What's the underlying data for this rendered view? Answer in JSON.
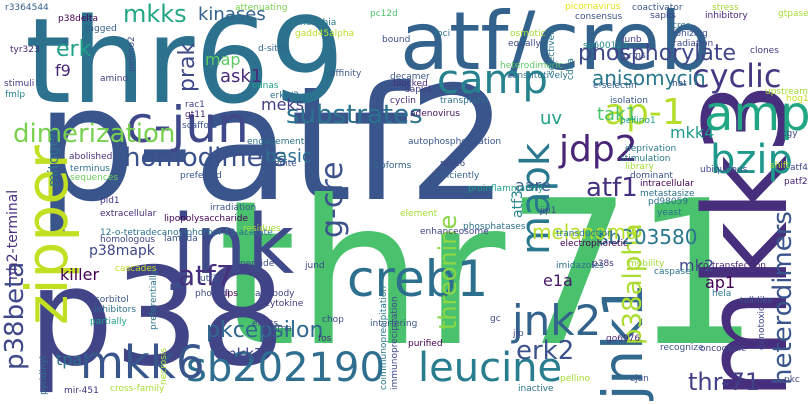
{
  "words": [
    {
      "text": "p-atf2",
      "color": "#3a548c"
    },
    {
      "text": "thr71",
      "color": "#4ac16d"
    },
    {
      "text": "thr69",
      "color": "#2c718e"
    },
    {
      "text": "atf/creb",
      "color": "#33628d"
    },
    {
      "text": "p38",
      "color": "#414487"
    },
    {
      "text": "mkk3",
      "color": "#472f7d"
    },
    {
      "text": "jnk",
      "color": "#3e4a89"
    },
    {
      "text": "zipper",
      "color": "#c2df23"
    },
    {
      "text": "c-jun",
      "color": "#3f4889"
    },
    {
      "text": "amp",
      "color": "#22a785"
    },
    {
      "text": "camp",
      "color": "#26828e"
    },
    {
      "text": "mapk",
      "color": "#2a788e"
    },
    {
      "text": "jnk1",
      "color": "#31688e"
    },
    {
      "text": "creb1",
      "color": "#2d708e"
    },
    {
      "text": "sb202190",
      "color": "#2e6e8e"
    },
    {
      "text": "leucine",
      "color": "#287d8e"
    },
    {
      "text": "mkk6",
      "color": "#39568c"
    },
    {
      "text": "jnk2",
      "color": "#33638d"
    },
    {
      "text": "bzip",
      "color": "#1f988b"
    },
    {
      "text": "ap-1",
      "color": "#b5de2b"
    },
    {
      "text": "cyclic",
      "color": "#443a83"
    },
    {
      "text": "jdp2",
      "color": "#482576"
    },
    {
      "text": "mkks",
      "color": "#22a785"
    },
    {
      "text": "dimerization",
      "color": "#7ad151"
    },
    {
      "text": "substrates",
      "color": "#2c728e"
    },
    {
      "text": "homodimers",
      "color": "#3b518b"
    },
    {
      "text": "heterodimers",
      "color": "#39558c"
    },
    {
      "text": "g-cre",
      "color": "#3b528b"
    },
    {
      "text": "pkcepsilon",
      "color": "#31688e"
    },
    {
      "text": "threonine",
      "color": "#8bd646"
    },
    {
      "text": "atf7",
      "color": "#46307e"
    },
    {
      "text": "erk2",
      "color": "#3b528b"
    },
    {
      "text": "p38alpha",
      "color": "#addc30"
    },
    {
      "text": "atf1",
      "color": "#46307e"
    },
    {
      "text": "sb203580",
      "color": "#2a768e"
    },
    {
      "text": "p38beta",
      "color": "#3f4889"
    },
    {
      "text": "phosphorylate",
      "color": "#3f4788"
    },
    {
      "text": "anisomycin",
      "color": "#2a778e"
    },
    {
      "text": "melanoma",
      "color": "#b8de29"
    },
    {
      "text": "thr-71",
      "color": "#424086"
    },
    {
      "text": "erk",
      "color": "#1fa088"
    },
    {
      "text": "prak",
      "color": "#3e4989"
    },
    {
      "text": "kinases",
      "color": "#33638d"
    },
    {
      "text": "ask1",
      "color": "#472d7b"
    },
    {
      "text": "meks",
      "color": "#433e85"
    },
    {
      "text": "basic",
      "color": "#2c718e"
    },
    {
      "text": "tak1",
      "color": "#4ac16d"
    },
    {
      "text": "mkk4",
      "color": "#1e9b8a"
    },
    {
      "text": "mkk7",
      "color": "#404588"
    },
    {
      "text": "mk2",
      "color": "#3e4989"
    },
    {
      "text": "ap1",
      "color": "#440154"
    },
    {
      "text": "tpa",
      "color": "#2d708e"
    },
    {
      "text": "killer",
      "color": "#440154"
    },
    {
      "text": "p38mapk",
      "color": "#3f4788"
    },
    {
      "text": "mitogen",
      "color": "#2c718e"
    },
    {
      "text": "aare",
      "color": "#38598c"
    },
    {
      "text": "atf3",
      "color": "#23888e"
    },
    {
      "text": "nh2-terminal",
      "color": "#46327e"
    },
    {
      "text": "uv",
      "color": "#1fa088"
    },
    {
      "text": "f9",
      "color": "#482677"
    },
    {
      "text": "map",
      "color": "#5ec962"
    },
    {
      "text": "e1a",
      "color": "#48186a"
    },
    {
      "text": "r3364544",
      "color": "#355f8d"
    },
    {
      "text": "p38delta",
      "color": "#440154"
    },
    {
      "text": "tagged",
      "color": "#355f8d"
    },
    {
      "text": "attenuating",
      "color": "#7ad151"
    },
    {
      "text": "pc12d",
      "color": "#4ac16d"
    },
    {
      "text": "picornavirus",
      "color": "#e5e419"
    },
    {
      "text": "coactivator",
      "color": "#39568c"
    },
    {
      "text": "stress",
      "color": "#a5db36"
    },
    {
      "text": "gtpase",
      "color": "#a5db36"
    },
    {
      "text": "tyr323",
      "color": "#482777"
    },
    {
      "text": "stimuli",
      "color": "#453882"
    },
    {
      "text": "fmlp",
      "color": "#26828e"
    },
    {
      "text": "inhibitory",
      "color": "#482576"
    },
    {
      "text": "cres",
      "color": "#2c728e"
    },
    {
      "text": "escherichia",
      "color": "#2a788e"
    },
    {
      "text": "gadd45alpha",
      "color": "#b8de29"
    },
    {
      "text": "consensus",
      "color": "#3b528b"
    },
    {
      "text": "sapks",
      "color": "#3e4989"
    },
    {
      "text": "cdnas",
      "color": "#1f9e89"
    },
    {
      "text": "d-sites",
      "color": "#31688e"
    },
    {
      "text": "erk1/2",
      "color": "#2d708e"
    },
    {
      "text": "bound",
      "color": "#3b528b"
    },
    {
      "text": "foci",
      "color": "#2a778e"
    },
    {
      "text": "sp600125",
      "color": "#23888e"
    },
    {
      "text": "junb",
      "color": "#433e85"
    },
    {
      "text": "ionizing",
      "color": "#3b528b"
    },
    {
      "text": "radiation",
      "color": "#3f4889"
    },
    {
      "text": "clones",
      "color": "#46337f"
    },
    {
      "text": "decamer",
      "color": "#39558c"
    },
    {
      "text": "blocked",
      "color": "#472d7b"
    },
    {
      "text": "affinity",
      "color": "#39568c"
    },
    {
      "text": "amino",
      "color": "#414487"
    },
    {
      "text": "pellino2",
      "color": "#3e4989"
    },
    {
      "text": "rac1",
      "color": "#404588"
    },
    {
      "text": "gt11",
      "color": "#482071"
    },
    {
      "text": "scaffold",
      "color": "#39568c"
    },
    {
      "text": "sapk4",
      "color": "#433d84"
    },
    {
      "text": "cyclin",
      "color": "#482878"
    },
    {
      "text": "transplatin",
      "color": "#2d708e"
    },
    {
      "text": "constitutively",
      "color": "#2d708e"
    },
    {
      "text": "e-selectin",
      "color": "#355f8d"
    },
    {
      "text": "isolation",
      "color": "#38598c"
    },
    {
      "text": "pellino1",
      "color": "#1f9e89"
    },
    {
      "text": "hat",
      "color": "#3b528b"
    },
    {
      "text": "adenovirus",
      "color": "#471063"
    },
    {
      "text": "tgy",
      "color": "#3e4989"
    },
    {
      "text": "hog1",
      "color": "#c8e020"
    },
    {
      "text": "upstream",
      "color": "#a5db36"
    },
    {
      "text": "autophosphorylation",
      "color": "#39568c"
    },
    {
      "text": "engagement",
      "color": "#2c728e"
    },
    {
      "text": "arsenite",
      "color": "#3b528b"
    },
    {
      "text": "mek6",
      "color": "#3e4989"
    },
    {
      "text": "efficiently",
      "color": "#33638d"
    },
    {
      "text": "deprivation",
      "color": "#2a788e"
    },
    {
      "text": "stimulation",
      "color": "#2a768e"
    },
    {
      "text": "ubiquitous",
      "color": "#3e4989"
    },
    {
      "text": "abolished",
      "color": "#46327e"
    },
    {
      "text": "terminus",
      "color": "#2c718e"
    },
    {
      "text": "sequences",
      "color": "#6ccd5a"
    },
    {
      "text": "preferred",
      "color": "#39568c"
    },
    {
      "text": "pld1",
      "color": "#453781"
    },
    {
      "text": "isoforms",
      "color": "#33638d"
    },
    {
      "text": "proinflammatory",
      "color": "#1f9e89"
    },
    {
      "text": "library",
      "color": "#a5db36"
    },
    {
      "text": "dominant",
      "color": "#3b528b"
    },
    {
      "text": "intracellular",
      "color": "#440154"
    },
    {
      "text": "metastasize",
      "color": "#2d708e"
    },
    {
      "text": "atf4",
      "color": "#3e4989"
    },
    {
      "text": "patf2",
      "color": "#482071"
    },
    {
      "text": "irradiation",
      "color": "#39558c"
    },
    {
      "text": "lipopolysaccharide",
      "color": "#440154"
    },
    {
      "text": "12-o-tetradecanoylphorbol-13-acetate",
      "color": "#2c728e"
    },
    {
      "text": "homologous",
      "color": "#404588"
    },
    {
      "text": "lambda",
      "color": "#3b528b"
    },
    {
      "text": "residues",
      "color": "#a5db36"
    },
    {
      "text": "enhanceosome",
      "color": "#404588"
    },
    {
      "text": "phosphatases",
      "color": "#2c718e"
    },
    {
      "text": "transduction",
      "color": "#2a788e"
    },
    {
      "text": "electrophoretic",
      "color": "#440154"
    },
    {
      "text": "yeast",
      "color": "#2c728e"
    },
    {
      "text": "jip1",
      "color": "#3e4989"
    },
    {
      "text": "pd98059",
      "color": "#2c718e"
    },
    {
      "text": "extracellular",
      "color": "#472d7b"
    },
    {
      "text": "element",
      "color": "#a5db36"
    },
    {
      "text": "co-transfection",
      "color": "#482475"
    },
    {
      "text": "hela",
      "color": "#2a788e"
    },
    {
      "text": "cascades",
      "color": "#c2df23"
    },
    {
      "text": "peptide",
      "color": "#3e4989"
    },
    {
      "text": "jund",
      "color": "#3f4788"
    },
    {
      "text": "imidazoles",
      "color": "#2c718e"
    },
    {
      "text": "p38s",
      "color": "#46327e"
    },
    {
      "text": "mobility",
      "color": "#a5db36"
    },
    {
      "text": "caspase",
      "color": "#2c728e"
    },
    {
      "text": "toll-like",
      "color": "#39568c"
    },
    {
      "text": "shift",
      "color": "#a5db36"
    },
    {
      "text": "utf1",
      "color": "#39568c"
    },
    {
      "text": "phorbol",
      "color": "#3e4989"
    },
    {
      "text": "lps",
      "color": "#440154"
    },
    {
      "text": "antibody",
      "color": "#404588"
    },
    {
      "text": "cytokine",
      "color": "#453882"
    },
    {
      "text": "sorbitol",
      "color": "#3b528b"
    },
    {
      "text": "inhibitors",
      "color": "#2d708e"
    },
    {
      "text": "partially",
      "color": "#1fa088"
    },
    {
      "text": "preferentially",
      "color": "#2c728e"
    },
    {
      "text": "chop",
      "color": "#3f4788"
    },
    {
      "text": "fos",
      "color": "#46307e"
    },
    {
      "text": "interfering",
      "color": "#3b528b"
    },
    {
      "text": "coimmunoprecipitation",
      "color": "#2a788e"
    },
    {
      "text": "immunoprecipitation",
      "color": "#3f4889"
    },
    {
      "text": "purified",
      "color": "#440154"
    },
    {
      "text": "jip",
      "color": "#404588"
    },
    {
      "text": "gc",
      "color": "#3e4989"
    },
    {
      "text": "recognize",
      "color": "#3b528b"
    },
    {
      "text": "oncogenic",
      "color": "#3f4788"
    },
    {
      "text": "genotoxic",
      "color": "#404588"
    },
    {
      "text": "go6976",
      "color": "#472d7b"
    },
    {
      "text": "pkc",
      "color": "#3f4788"
    },
    {
      "text": "pellino",
      "color": "#a5db36"
    },
    {
      "text": "cjun",
      "color": "#3b528b"
    },
    {
      "text": "inactive",
      "color": "#2c718e"
    },
    {
      "text": "mir-451",
      "color": "#46327e"
    },
    {
      "text": "cross-family",
      "color": "#a5db36"
    },
    {
      "text": "necrosis",
      "color": "#a5db36"
    },
    {
      "text": "sirna",
      "color": "#3b528b"
    },
    {
      "text": "elicits",
      "color": "#404588"
    },
    {
      "text": "pyridinyl",
      "color": "#2c728e"
    },
    {
      "text": "cdna",
      "color": "#2a788e"
    },
    {
      "text": "osmotic",
      "color": "#a5db36"
    },
    {
      "text": "heterodimeric",
      "color": "#5ec962"
    },
    {
      "text": "equally",
      "color": "#3e4989"
    },
    {
      "text": "selectively",
      "color": "#2a788e"
    },
    {
      "text": "forms",
      "color": "#404588"
    }
  ]
}
